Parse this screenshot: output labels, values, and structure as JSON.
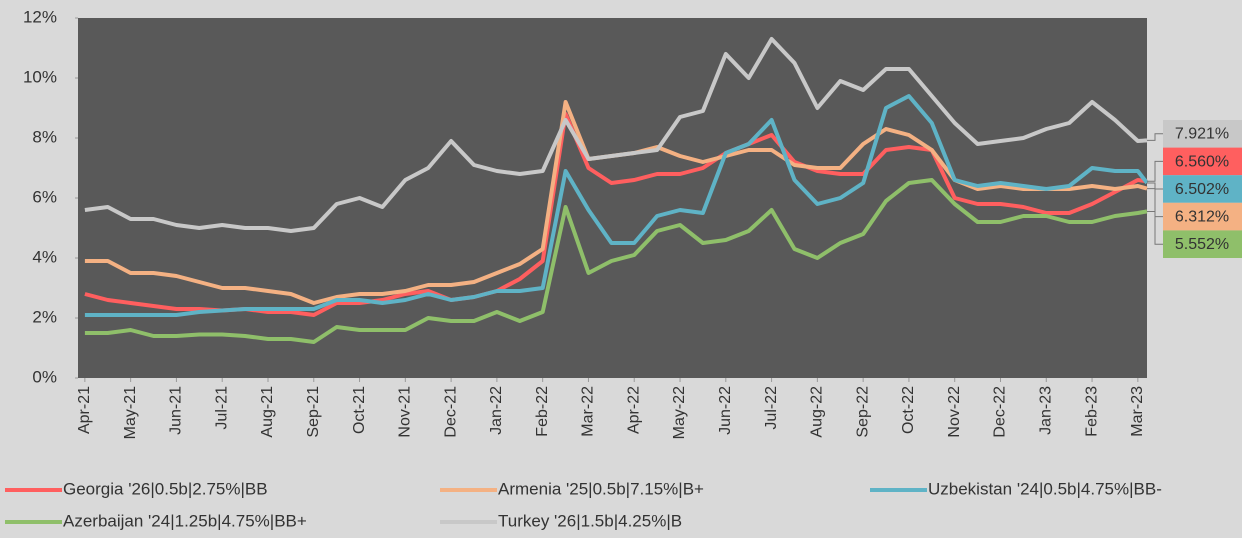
{
  "chart_data": {
    "type": "line",
    "x": [
      0,
      0.5,
      1,
      1.5,
      2,
      2.5,
      3,
      3.5,
      4,
      4.5,
      5,
      5.5,
      6,
      6.5,
      7,
      7.5,
      8,
      8.5,
      9,
      9.5,
      10,
      10.5,
      11,
      11.5,
      12,
      12.5,
      13,
      13.5,
      14,
      14.5,
      15,
      15.5,
      16,
      16.5,
      17,
      17.5,
      18,
      18.5,
      19,
      19.5,
      20,
      20.5,
      21,
      21.5,
      22,
      22.5,
      23,
      23.2
    ],
    "xlim": [
      -0.15,
      23.2
    ],
    "xticks": [
      {
        "value": 0,
        "label": "Apr-21"
      },
      {
        "value": 1,
        "label": "May-21"
      },
      {
        "value": 2,
        "label": "Jun-21"
      },
      {
        "value": 3,
        "label": "Jul-21"
      },
      {
        "value": 4,
        "label": "Aug-21"
      },
      {
        "value": 5,
        "label": "Sep-21"
      },
      {
        "value": 6,
        "label": "Oct-21"
      },
      {
        "value": 7,
        "label": "Nov-21"
      },
      {
        "value": 8,
        "label": "Dec-21"
      },
      {
        "value": 9,
        "label": "Jan-22"
      },
      {
        "value": 10,
        "label": "Feb-22"
      },
      {
        "value": 11,
        "label": "Mar-22"
      },
      {
        "value": 12,
        "label": "Apr-22"
      },
      {
        "value": 13,
        "label": "May-22"
      },
      {
        "value": 14,
        "label": "Jun-22"
      },
      {
        "value": 15,
        "label": "Jul-22"
      },
      {
        "value": 16,
        "label": "Aug-22"
      },
      {
        "value": 17,
        "label": "Sep-22"
      },
      {
        "value": 18,
        "label": "Oct-22"
      },
      {
        "value": 19,
        "label": "Nov-22"
      },
      {
        "value": 20,
        "label": "Dec-22"
      },
      {
        "value": 21,
        "label": "Jan-23"
      },
      {
        "value": 22,
        "label": "Feb-23"
      },
      {
        "value": 23,
        "label": "Mar-23"
      }
    ],
    "ylim": [
      0,
      12
    ],
    "yticks": [
      {
        "value": 0,
        "label": "0%"
      },
      {
        "value": 2,
        "label": "2%"
      },
      {
        "value": 4,
        "label": "4%"
      },
      {
        "value": 6,
        "label": "6%"
      },
      {
        "value": 8,
        "label": "8%"
      },
      {
        "value": 10,
        "label": "10%"
      },
      {
        "value": 12,
        "label": "12%"
      }
    ],
    "series": [
      {
        "name": "Georgia '26|0.5b|2.75%|BB",
        "color": "#ff5f5f",
        "end_label": "6.560%",
        "values": [
          2.8,
          2.6,
          2.5,
          2.4,
          2.3,
          2.3,
          2.25,
          2.3,
          2.2,
          2.2,
          2.1,
          2.5,
          2.5,
          2.6,
          2.8,
          2.9,
          2.6,
          2.7,
          2.9,
          3.3,
          3.9,
          8.8,
          7.0,
          6.5,
          6.6,
          6.8,
          6.8,
          7.0,
          7.5,
          7.8,
          8.1,
          7.2,
          6.9,
          6.8,
          6.8,
          7.6,
          7.7,
          7.6,
          6.0,
          5.8,
          5.8,
          5.7,
          5.5,
          5.5,
          5.8,
          6.2,
          6.6,
          6.56
        ]
      },
      {
        "name": "Armenia '25|0.5b|7.15%|B+",
        "color": "#f4b183",
        "end_label": "6.312%",
        "values": [
          3.9,
          3.9,
          3.5,
          3.5,
          3.4,
          3.2,
          3.0,
          3.0,
          2.9,
          2.8,
          2.5,
          2.7,
          2.8,
          2.8,
          2.9,
          3.1,
          3.1,
          3.2,
          3.5,
          3.8,
          4.3,
          9.2,
          7.3,
          7.4,
          7.5,
          7.7,
          7.4,
          7.2,
          7.4,
          7.6,
          7.6,
          7.1,
          7.0,
          7.0,
          7.8,
          8.3,
          8.1,
          7.6,
          6.6,
          6.3,
          6.4,
          6.3,
          6.3,
          6.3,
          6.4,
          6.3,
          6.4,
          6.312
        ]
      },
      {
        "name": "Uzbekistan '24|0.5b|4.75%|BB-",
        "color": "#5fb3c6",
        "end_label": "6.502%",
        "values": [
          2.1,
          2.1,
          2.1,
          2.1,
          2.1,
          2.2,
          2.25,
          2.3,
          2.3,
          2.3,
          2.3,
          2.6,
          2.6,
          2.5,
          2.6,
          2.8,
          2.6,
          2.7,
          2.9,
          2.9,
          3.0,
          6.9,
          5.6,
          4.5,
          4.5,
          5.4,
          5.6,
          5.5,
          7.5,
          7.8,
          8.6,
          6.6,
          5.8,
          6.0,
          6.5,
          9.0,
          9.4,
          8.5,
          6.6,
          6.4,
          6.5,
          6.4,
          6.3,
          6.4,
          7.0,
          6.9,
          6.9,
          6.502
        ]
      },
      {
        "name": "Azerbaijan '24|1.25b|4.75%|BB+",
        "color": "#8fbf6a",
        "end_label": "5.552%",
        "values": [
          1.5,
          1.5,
          1.6,
          1.4,
          1.4,
          1.45,
          1.45,
          1.4,
          1.3,
          1.3,
          1.2,
          1.7,
          1.6,
          1.6,
          1.6,
          2.0,
          1.9,
          1.9,
          2.2,
          1.9,
          2.2,
          5.7,
          3.5,
          3.9,
          4.1,
          4.9,
          5.1,
          4.5,
          4.6,
          4.9,
          5.6,
          4.3,
          4.0,
          4.5,
          4.8,
          5.9,
          6.5,
          6.6,
          5.8,
          5.2,
          5.2,
          5.4,
          5.4,
          5.2,
          5.2,
          5.4,
          5.5,
          5.552
        ]
      },
      {
        "name": "Turkey '26|1.5b|4.25%|B",
        "color": "#c8c8c8",
        "end_label": "7.921%",
        "values": [
          5.6,
          5.7,
          5.3,
          5.3,
          5.1,
          5.0,
          5.1,
          5.0,
          5.0,
          4.9,
          5.0,
          5.8,
          6.0,
          5.7,
          6.6,
          7.0,
          7.9,
          7.1,
          6.9,
          6.8,
          6.9,
          8.6,
          7.3,
          7.4,
          7.5,
          7.6,
          8.7,
          8.9,
          10.8,
          10.0,
          11.3,
          10.5,
          9.0,
          9.9,
          9.6,
          10.3,
          10.3,
          9.4,
          8.5,
          7.8,
          7.9,
          8.0,
          8.3,
          8.5,
          9.2,
          8.6,
          7.9,
          7.921
        ]
      }
    ]
  }
}
